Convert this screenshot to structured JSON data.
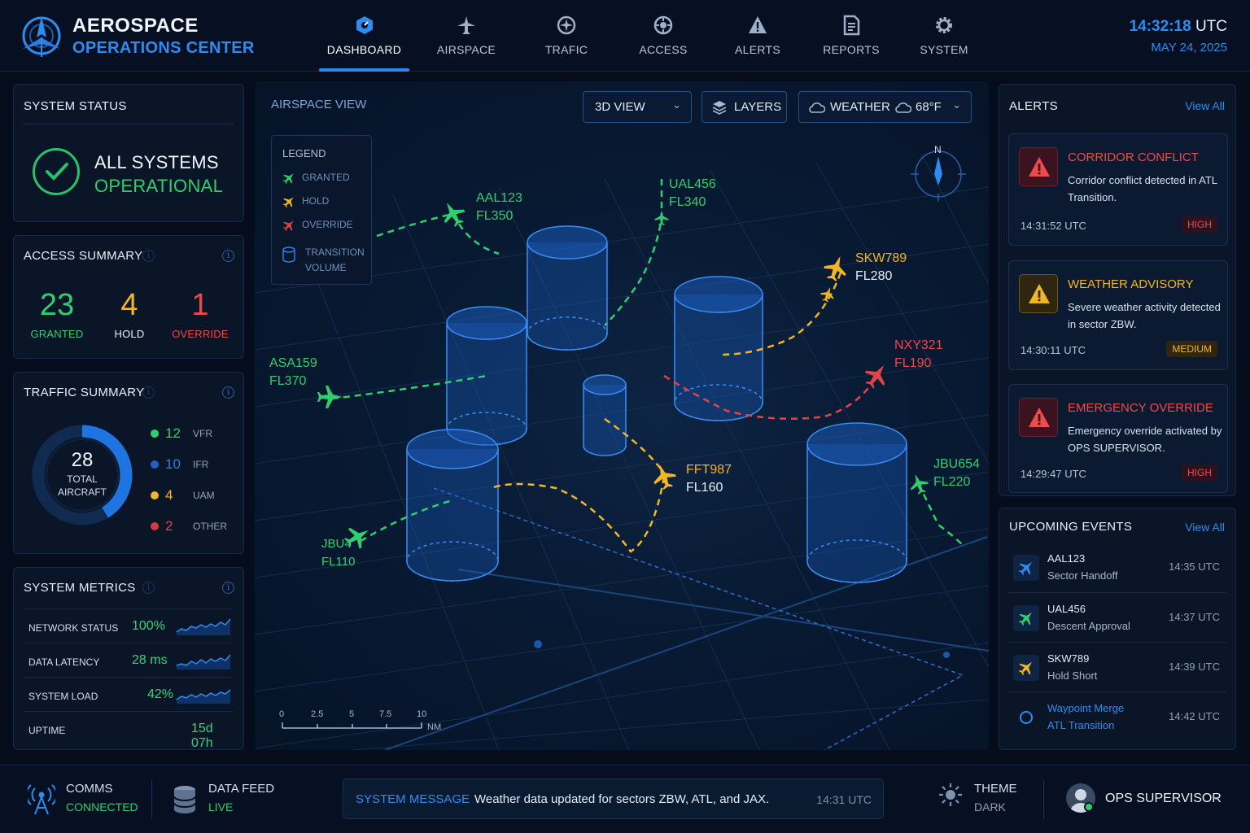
{
  "header": {
    "brand_line1": "AEROSPACE",
    "brand_line2": "OPERATIONS CENTER",
    "nav": [
      {
        "label": "DASHBOARD",
        "icon": "dashboard-icon",
        "active": true
      },
      {
        "label": "AIRSPACE",
        "icon": "airspace-icon"
      },
      {
        "label": "TRAFIC",
        "icon": "traffic-icon"
      },
      {
        "label": "ACCESS",
        "icon": "access-icon"
      },
      {
        "label": "ALERTS",
        "icon": "alert-icon"
      },
      {
        "label": "REPORTS",
        "icon": "report-icon"
      },
      {
        "label": "SYSTEM",
        "icon": "gear-icon"
      }
    ],
    "time": "14:32:18",
    "timezone": "UTC",
    "date": "MAY 24, 2025"
  },
  "system_status": {
    "title": "SYSTEM STATUS",
    "line1": "ALL SYSTEMS",
    "line2": "OPERATIONAL"
  },
  "access_summary": {
    "title": "ACCESS SUMMARY",
    "granted": {
      "value": "23",
      "label": "GRANTED"
    },
    "hold": {
      "value": "4",
      "label": "HOLD"
    },
    "override": {
      "value": "1",
      "label": "OVERRIDE"
    }
  },
  "traffic_summary": {
    "title": "TRAFFIC SUMMARY",
    "total": "28",
    "total_label1": "TOTAL",
    "total_label2": "AIRCRAFT",
    "rows": [
      {
        "value": "12",
        "label": "VFR",
        "color": "#2fcf6e"
      },
      {
        "value": "10",
        "label": "IFR",
        "color": "#2b7fe8"
      },
      {
        "value": "4",
        "label": "UAM",
        "color": "#f2b525"
      },
      {
        "value": "2",
        "label": "OTHER",
        "color": "#e24444"
      }
    ]
  },
  "system_metrics": {
    "title": "SYSTEM METRICS",
    "rows": [
      {
        "label": "NETWORK STATUS",
        "value": "100%"
      },
      {
        "label": "DATA LATENCY",
        "value": "28 ms"
      },
      {
        "label": "SYSTEM LOAD",
        "value": "42%"
      },
      {
        "label": "UPTIME",
        "value": "15d 07h"
      }
    ]
  },
  "airspace": {
    "title": "AIRSPACE VIEW",
    "view_select": "3D VIEW",
    "layers_button": "LAYERS",
    "weather_label": "WEATHER",
    "weather_temp": "68°F",
    "legend_title": "LEGEND",
    "legend": [
      {
        "label": "GRANTED",
        "color": "#2fcf6e"
      },
      {
        "label": "HOLD",
        "color": "#f2b525"
      },
      {
        "label": "OVERRIDE",
        "color": "#e24444"
      },
      {
        "label": "TRANSITION VOLUME",
        "color": "#2b7fe8"
      }
    ],
    "compass_label": "N",
    "flights": [
      {
        "callsign": "AAL123",
        "level": "FL350",
        "status": "granted"
      },
      {
        "callsign": "UAL456",
        "level": "FL340",
        "status": "granted"
      },
      {
        "callsign": "SKW789",
        "level": "FL280",
        "status": "hold"
      },
      {
        "callsign": "NXY321",
        "level": "FL190",
        "status": "override"
      },
      {
        "callsign": "ASA159",
        "level": "FL370",
        "status": "granted"
      },
      {
        "callsign": "FFT987",
        "level": "FL160",
        "status": "hold"
      },
      {
        "callsign": "JBU654",
        "level": "FL220",
        "status": "granted"
      },
      {
        "callsign": "JBU4",
        "level": "FL110",
        "status": "granted"
      }
    ],
    "scale_ticks": [
      "0",
      "2.5",
      "5",
      "7.5",
      "10"
    ],
    "scale_unit": "NM"
  },
  "alerts": {
    "title": "ALERTS",
    "view_all": "View All",
    "items": [
      {
        "title": "CORRIDOR CONFLICT",
        "desc": "Corridor conflict detected in ATL Transition.",
        "time": "14:31:52 UTC",
        "severity": "HIGH",
        "color": "#f04a4a"
      },
      {
        "title": "WEATHER ADVISORY",
        "desc": "Severe weather activity detected in sector ZBW.",
        "time": "14:30:11 UTC",
        "severity": "MEDIUM",
        "color": "#f2b525"
      },
      {
        "title": "EMERGENCY OVERRIDE",
        "desc": "Emergency override activated by OPS SUPERVISOR.",
        "time": "14:29:47 UTC",
        "severity": "HIGH",
        "color": "#f04a4a"
      }
    ]
  },
  "events": {
    "title": "UPCOMING EVENTS",
    "view_all": "View All",
    "items": [
      {
        "line1": "AAL123",
        "line2": "Sector Handoff",
        "time": "14:35 UTC",
        "icon": "plane-icon",
        "color": "#2e8cf0"
      },
      {
        "line1": "UAL456",
        "line2": "Descent Approval",
        "time": "14:37 UTC",
        "icon": "plane-icon",
        "color": "#2fcf6e"
      },
      {
        "line1": "SKW789",
        "line2": "Hold Short",
        "time": "14:39 UTC",
        "icon": "plane-icon",
        "color": "#f2b525"
      },
      {
        "line1": "Waypoint Merge",
        "line2": "ATL Transition",
        "time": "14:42 UTC",
        "icon": "waypoint-icon",
        "color": "#2e8cf0"
      }
    ]
  },
  "footer": {
    "comms_label": "COMMS",
    "comms_status": "CONNECTED",
    "feed_label": "DATA FEED",
    "feed_status": "LIVE",
    "msg_label": "SYSTEM MESSAGE",
    "msg_text": "Weather data updated for sectors ZBW, ATL, and JAX.",
    "msg_time": "14:31 UTC",
    "theme_label": "THEME",
    "theme_value": "DARK",
    "user": "OPS SUPERVISOR"
  }
}
